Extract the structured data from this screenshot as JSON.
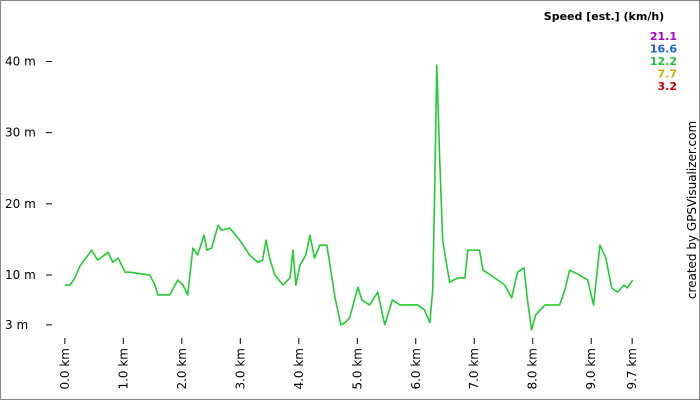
{
  "chart_data": {
    "type": "line",
    "x": [
      0.0,
      0.09,
      0.17,
      0.26,
      0.46,
      0.56,
      0.74,
      0.82,
      0.91,
      1.03,
      1.11,
      1.45,
      1.54,
      1.59,
      1.79,
      1.93,
      2.02,
      2.1,
      2.19,
      2.27,
      2.38,
      2.43,
      2.51,
      2.62,
      2.68,
      2.82,
      2.99,
      3.16,
      3.3,
      3.38,
      3.44,
      3.5,
      3.59,
      3.73,
      3.85,
      3.9,
      3.95,
      4.02,
      4.12,
      4.19,
      4.27,
      4.36,
      4.48,
      4.62,
      4.72,
      4.79,
      4.87,
      5.01,
      5.08,
      5.21,
      5.35,
      5.47,
      5.6,
      5.73,
      6.03,
      6.15,
      6.24,
      6.29,
      6.32,
      6.36,
      6.41,
      6.46,
      6.53,
      6.58,
      6.72,
      6.84,
      6.89,
      7.09,
      7.15,
      7.35,
      7.52,
      7.64,
      7.74,
      7.85,
      7.91,
      7.98,
      8.05,
      8.21,
      8.46,
      8.55,
      8.63,
      8.8,
      8.94,
      9.04,
      9.15,
      9.25,
      9.35,
      9.45,
      9.56,
      9.62,
      9.71
    ],
    "series": [
      {
        "color": "#22cc33",
        "values": [
          8.6,
          8.6,
          9.6,
          11.3,
          13.5,
          12.1,
          13.2,
          11.8,
          12.4,
          10.4,
          10.4,
          10.0,
          8.6,
          7.2,
          7.2,
          9.3,
          8.6,
          7.2,
          13.8,
          12.8,
          15.6,
          13.5,
          13.8,
          17.0,
          16.3,
          16.6,
          14.9,
          12.8,
          11.8,
          12.1,
          14.9,
          12.4,
          10.0,
          8.6,
          9.6,
          13.5,
          8.6,
          11.4,
          12.8,
          15.6,
          12.4,
          14.2,
          14.2,
          6.8,
          3.0,
          3.3,
          4.0,
          8.3,
          6.5,
          5.8,
          7.6,
          3.0,
          6.5,
          5.8,
          5.8,
          5.1,
          3.3,
          7.9,
          20.5,
          39.5,
          26.1,
          14.9,
          11.4,
          9.0,
          9.6,
          9.6,
          13.5,
          13.5,
          10.7,
          9.6,
          8.6,
          6.8,
          10.4,
          11.0,
          6.5,
          2.3,
          4.4,
          5.8,
          5.8,
          7.9,
          10.7,
          10.0,
          9.3,
          5.8,
          14.2,
          12.4,
          8.2,
          7.6,
          8.6,
          8.2,
          9.3
        ]
      }
    ],
    "xlim": [
      -0.1,
      9.8
    ],
    "ylim": [
      2,
      44
    ],
    "xticks": [
      {
        "value": 0,
        "label": "0.0 km"
      },
      {
        "value": 1,
        "label": "1.0 km"
      },
      {
        "value": 2,
        "label": "2.0 km"
      },
      {
        "value": 3,
        "label": "3.0 km"
      },
      {
        "value": 4,
        "label": "4.0 km"
      },
      {
        "value": 5,
        "label": "5.0 km"
      },
      {
        "value": 6,
        "label": "6.0 km"
      },
      {
        "value": 7,
        "label": "7.0 km"
      },
      {
        "value": 8,
        "label": "8.0 km"
      },
      {
        "value": 9,
        "label": "9.0 km"
      },
      {
        "value": 9.7,
        "label": "9.7 km"
      }
    ],
    "yticks": [
      {
        "value": 3,
        "label": "3 m"
      },
      {
        "value": 10,
        "label": "10 m"
      },
      {
        "value": 20,
        "label": "20 m"
      },
      {
        "value": 30,
        "label": "30 m"
      },
      {
        "value": 40,
        "label": "40 m"
      }
    ],
    "legend_title": "Speed [est.] (km/h)",
    "legend": [
      {
        "value": 21.1,
        "color": "#aa00cc"
      },
      {
        "value": 16.6,
        "color": "#1f5fd6"
      },
      {
        "value": 12.2,
        "color": "#1fbf3f"
      },
      {
        "value": 7.7,
        "color": "#c8b400"
      },
      {
        "value": 3.2,
        "color": "#cc0000"
      }
    ],
    "credit": "created by GPSVisualizer.com"
  }
}
